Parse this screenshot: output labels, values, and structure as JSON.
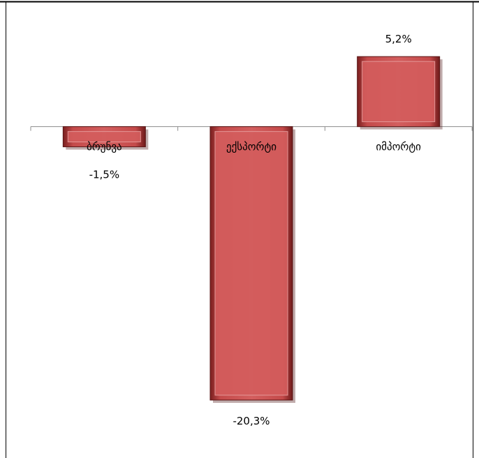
{
  "chart_data": {
    "type": "bar",
    "categories": [
      "ბრუნვა",
      "ექსპორტი",
      "იმპორტი"
    ],
    "values": [
      -1.5,
      -20.3,
      5.2
    ],
    "data_labels": [
      "-1,5%",
      "-20,3%",
      "5,2%"
    ],
    "title": "",
    "xlabel": "",
    "ylabel": "",
    "ylim": [
      -24.6,
      9.4
    ],
    "grid": false,
    "legend": "none",
    "bar_color": "#cd5353"
  }
}
